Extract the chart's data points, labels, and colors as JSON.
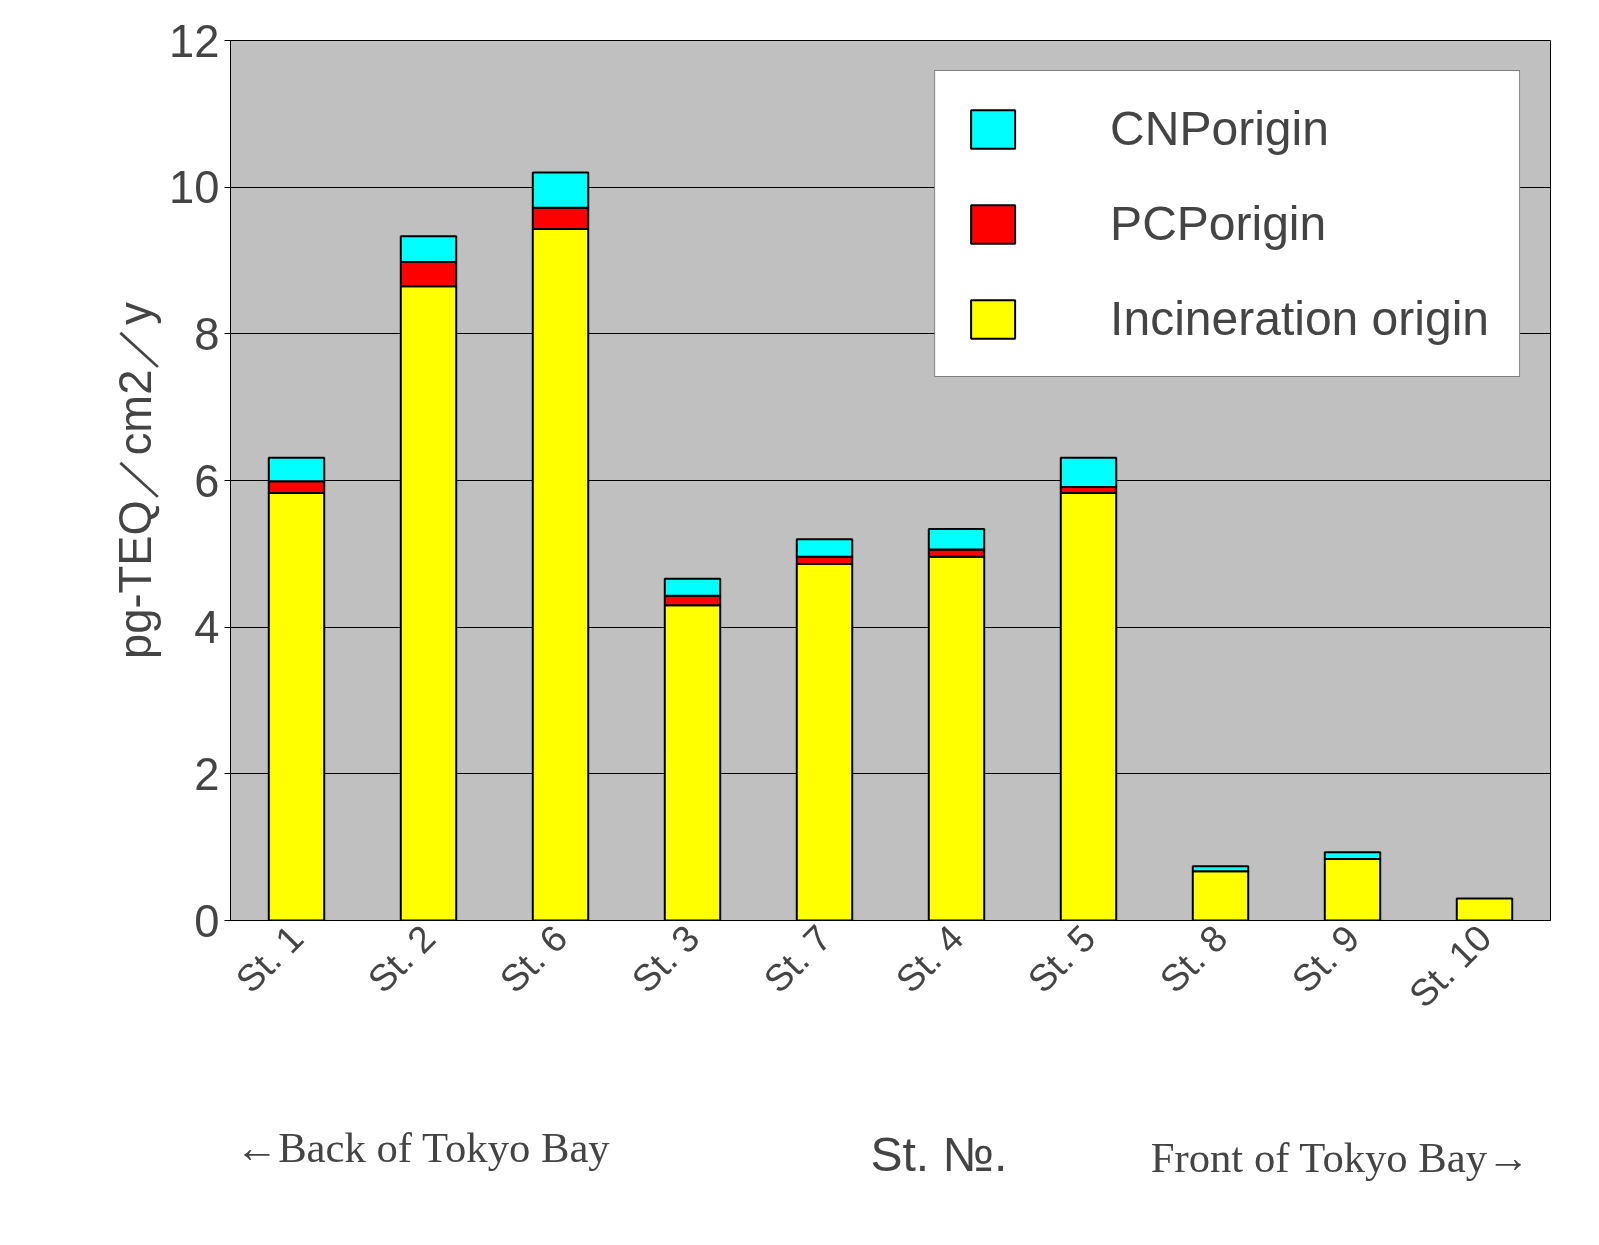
{
  "chart_data": {
    "type": "bar",
    "stacked": true,
    "ylabel": "pg-TEQ／cm2／y",
    "xlabel": "St. №.",
    "categories": [
      "St. 1",
      "St. 2",
      "St. 6",
      "St. 3",
      "St. 7",
      "St. 4",
      "St. 5",
      "St. 8",
      "St. 9",
      "St. 10"
    ],
    "series": [
      {
        "name": "Incineration origin",
        "color": "#ffff00",
        "values": [
          5.83,
          8.65,
          9.43,
          4.3,
          4.86,
          4.96,
          5.83,
          0.67,
          0.84,
          0.3
        ]
      },
      {
        "name": "PCPorigin",
        "color": "#ff0000",
        "values": [
          0.16,
          0.33,
          0.29,
          0.13,
          0.1,
          0.1,
          0.08,
          0,
          0,
          0
        ]
      },
      {
        "name": "CNPorigin",
        "color": "#00ffff",
        "values": [
          0.32,
          0.35,
          0.48,
          0.23,
          0.24,
          0.28,
          0.4,
          0.07,
          0.09,
          0
        ]
      }
    ],
    "ylim": [
      0,
      12
    ],
    "yticks": [
      0,
      2,
      4,
      6,
      8,
      10,
      12
    ],
    "grid": "y",
    "legend": "top right",
    "annotations": [
      "←Back of Tokyo Bay",
      "Front of Tokyo Bay→"
    ]
  }
}
